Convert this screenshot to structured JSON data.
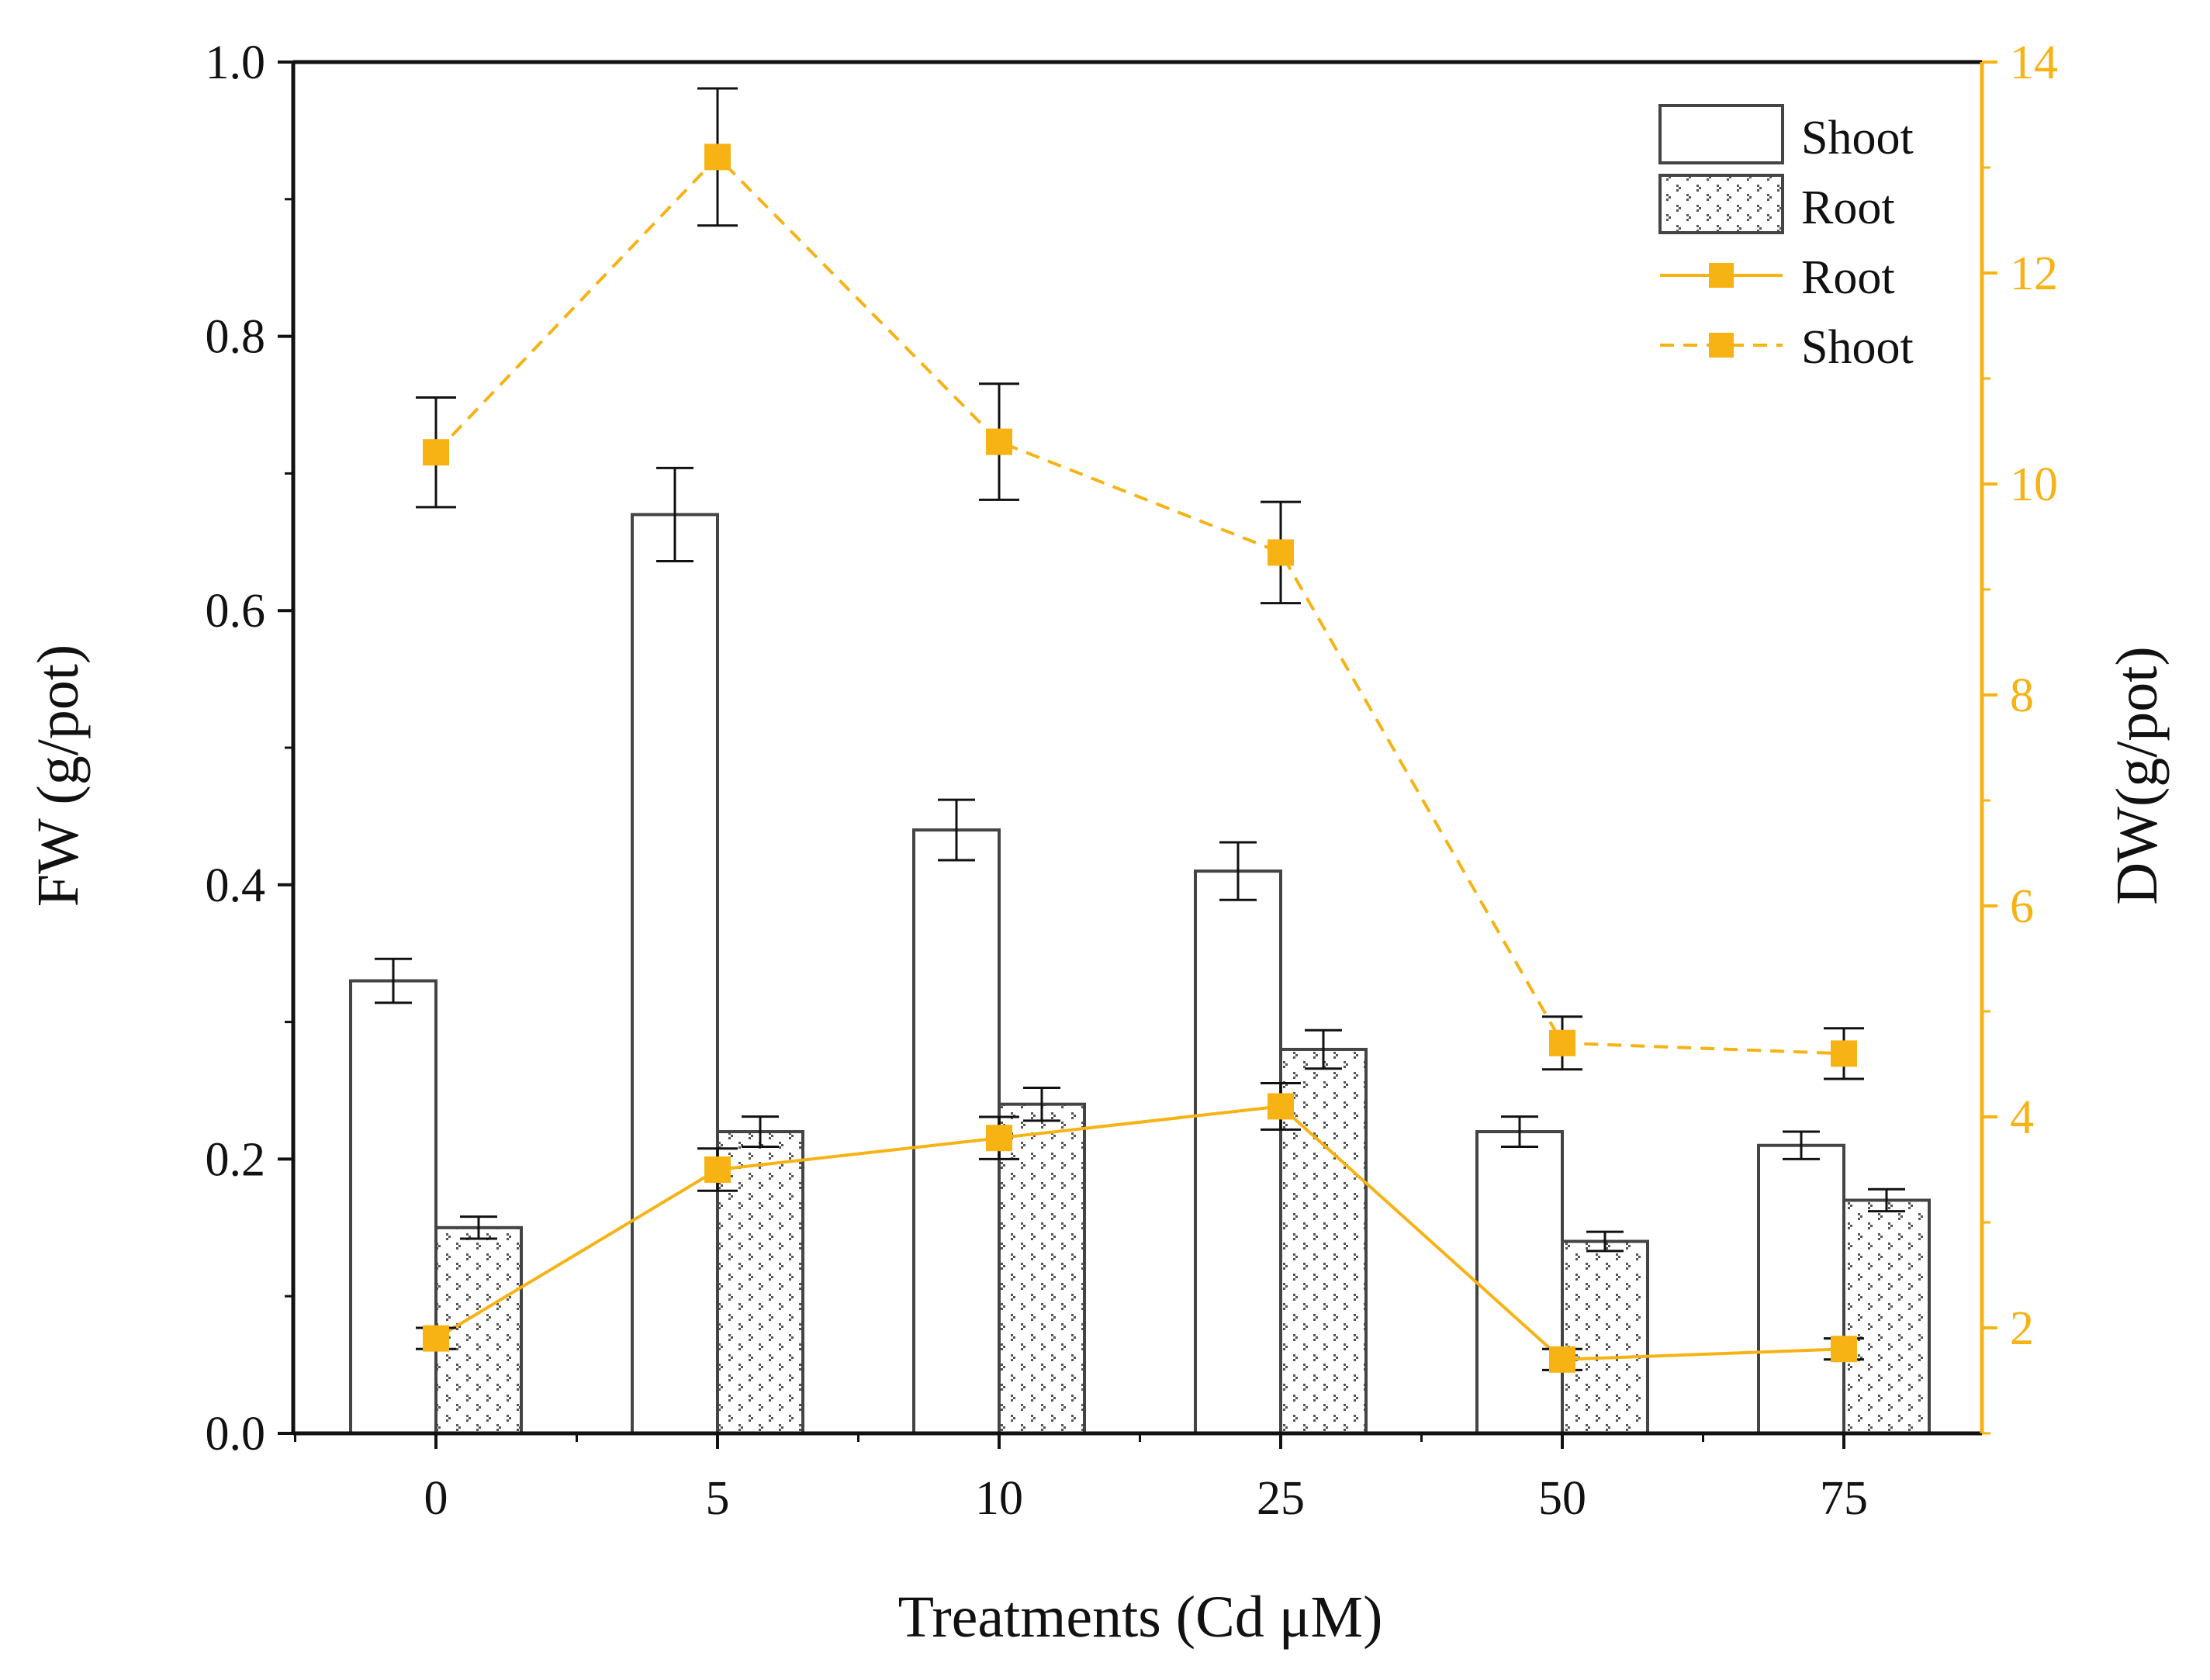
{
  "chart_data": {
    "type": "bar",
    "title": "",
    "xlabel": "Treatments (Cd μM)",
    "ylabel": "FW (g/pot)",
    "y2label": "DW(g/pot)",
    "categories": [
      "0",
      "5",
      "10",
      "25",
      "50",
      "75"
    ],
    "ylim": [
      0,
      1.0
    ],
    "y2lim": [
      1,
      14
    ],
    "yticks": [
      "0.0",
      "0.2",
      "0.4",
      "0.6",
      "0.8",
      "1.0"
    ],
    "y2ticks": [
      "2",
      "4",
      "6",
      "8",
      "10",
      "12",
      "14"
    ],
    "bar_series": [
      {
        "name": "Shoot",
        "pattern": "open",
        "values": [
          0.33,
          0.67,
          0.44,
          0.41,
          0.22,
          0.21
        ],
        "errors": [
          0.016,
          0.034,
          0.022,
          0.021,
          0.011,
          0.01
        ]
      },
      {
        "name": "Root",
        "pattern": "dotted",
        "values": [
          0.15,
          0.22,
          0.24,
          0.28,
          0.14,
          0.17
        ],
        "errors": [
          0.008,
          0.011,
          0.012,
          0.014,
          0.007,
          0.008
        ]
      }
    ],
    "line_series": [
      {
        "name": "Root",
        "style": "solid",
        "color": "#F7B214",
        "values": [
          1.9,
          3.5,
          3.8,
          4.1,
          1.7,
          1.8
        ],
        "errors": [
          0.1,
          0.2,
          0.2,
          0.22,
          0.1,
          0.1
        ]
      },
      {
        "name": "Shoot",
        "style": "dashed",
        "color": "#F7B214",
        "values": [
          10.3,
          13.1,
          10.4,
          9.35,
          4.7,
          4.6
        ],
        "errors": [
          0.52,
          0.65,
          0.55,
          0.48,
          0.25,
          0.24
        ]
      }
    ],
    "legend_position": "top-right",
    "accent_color": "#F7B214",
    "bar_edge_color": "#444444"
  }
}
